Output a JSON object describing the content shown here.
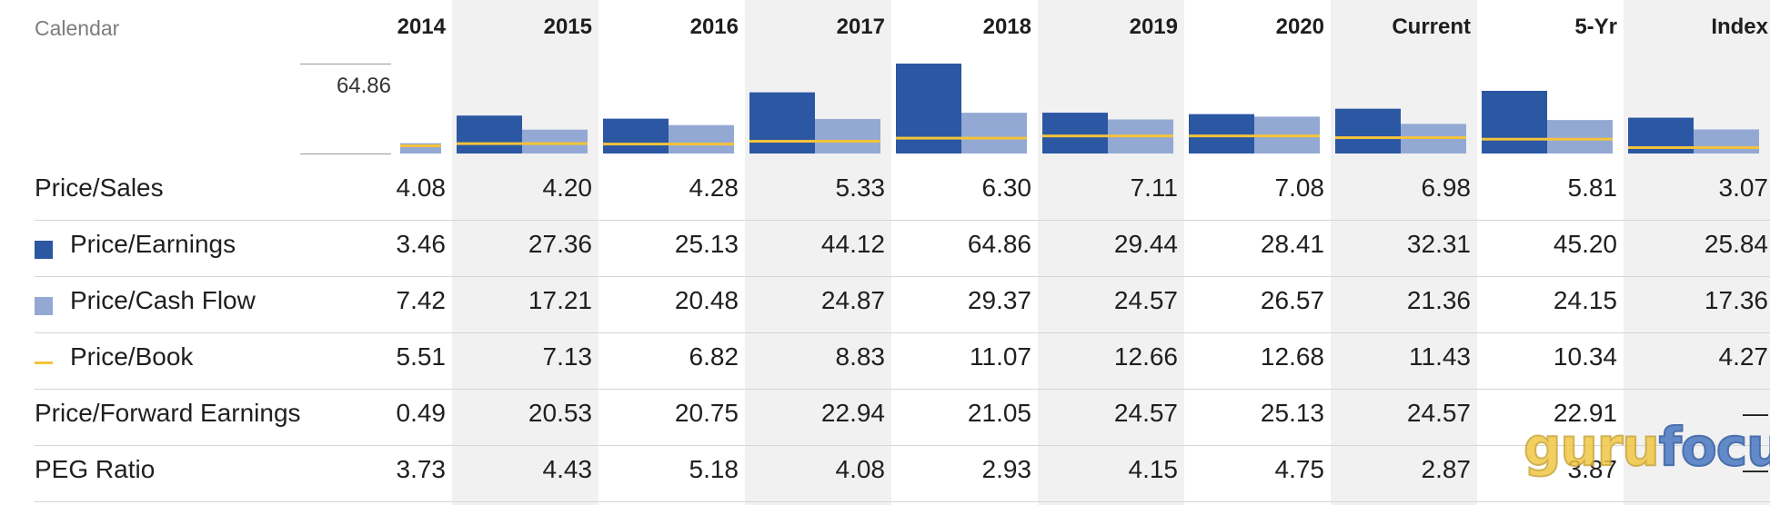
{
  "header": {
    "calendar_label": "Calendar",
    "columns": [
      "2014",
      "2015",
      "2016",
      "2017",
      "2018",
      "2019",
      "2020",
      "Current",
      "5-Yr",
      "Index"
    ]
  },
  "chart": {
    "scale_max_label": "64.86",
    "scale_max": 64.86
  },
  "colors": {
    "price_earnings": "#2b57a3",
    "price_cash_flow": "#93a9d4",
    "price_book": "#f4c33a",
    "shade": "#f1f1f1"
  },
  "rows": [
    {
      "label": "Price/Sales",
      "legend": null,
      "values": [
        "4.08",
        "4.20",
        "4.28",
        "5.33",
        "6.30",
        "7.11",
        "7.08",
        "6.98",
        "5.81",
        "3.07"
      ]
    },
    {
      "label": "Price/Earnings",
      "legend": "square-dark",
      "values": [
        "3.46",
        "27.36",
        "25.13",
        "44.12",
        "64.86",
        "29.44",
        "28.41",
        "32.31",
        "45.20",
        "25.84"
      ]
    },
    {
      "label": "Price/Cash Flow",
      "legend": "square-light",
      "values": [
        "7.42",
        "17.21",
        "20.48",
        "24.87",
        "29.37",
        "24.57",
        "26.57",
        "21.36",
        "24.15",
        "17.36"
      ]
    },
    {
      "label": "Price/Book",
      "legend": "line-yellow",
      "values": [
        "5.51",
        "7.13",
        "6.82",
        "8.83",
        "11.07",
        "12.66",
        "12.68",
        "11.43",
        "10.34",
        "4.27"
      ]
    },
    {
      "label": "Price/Forward Earnings",
      "legend": null,
      "values": [
        "0.49",
        "20.53",
        "20.75",
        "22.94",
        "21.05",
        "24.57",
        "25.13",
        "24.57",
        "22.91",
        "—"
      ]
    },
    {
      "label": "PEG Ratio",
      "legend": null,
      "values": [
        "3.73",
        "4.43",
        "5.18",
        "4.08",
        "2.93",
        "4.15",
        "4.75",
        "2.87",
        "3.87",
        "—"
      ]
    }
  ],
  "chart_data": {
    "type": "bar",
    "categories": [
      "2014",
      "2015",
      "2016",
      "2017",
      "2018",
      "2019",
      "2020",
      "Current",
      "5-Yr",
      "Index"
    ],
    "series": [
      {
        "name": "Price/Earnings",
        "values": [
          3.46,
          27.36,
          25.13,
          44.12,
          64.86,
          29.44,
          28.41,
          32.31,
          45.2,
          25.84
        ]
      },
      {
        "name": "Price/Cash Flow",
        "values": [
          7.42,
          17.21,
          20.48,
          24.87,
          29.37,
          24.57,
          26.57,
          21.36,
          24.15,
          17.36
        ]
      },
      {
        "name": "Price/Book",
        "values": [
          5.51,
          7.13,
          6.82,
          8.83,
          11.07,
          12.66,
          12.68,
          11.43,
          10.34,
          4.27
        ]
      }
    ],
    "ylim": [
      0,
      64.86
    ]
  },
  "watermark": {
    "part1": "guru",
    "part2": "focus"
  }
}
